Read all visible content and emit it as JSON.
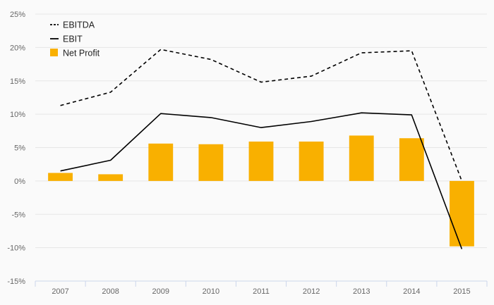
{
  "chart_data": {
    "type": "bar",
    "categories": [
      "2007",
      "2008",
      "2009",
      "2010",
      "2011",
      "2012",
      "2013",
      "2014",
      "2015"
    ],
    "y_ticks": [
      "25%",
      "20%",
      "15%",
      "10%",
      "5%",
      "0%",
      "-5%",
      "-10%",
      "-15%"
    ],
    "ylim": [
      -15,
      25
    ],
    "grid": true,
    "legend_position": "top-left",
    "series": [
      {
        "name": "EBITDA",
        "type": "line",
        "style": "dashed",
        "color": "#000000",
        "values": [
          11.3,
          13.3,
          19.7,
          18.2,
          14.8,
          15.7,
          19.2,
          19.5,
          0.0
        ]
      },
      {
        "name": "EBIT",
        "type": "line",
        "style": "solid",
        "color": "#000000",
        "values": [
          1.5,
          3.1,
          10.1,
          9.5,
          8.0,
          8.9,
          10.2,
          9.9,
          -10.2
        ]
      },
      {
        "name": "Net Profit",
        "type": "bar",
        "color": "#f9b000",
        "values": [
          1.2,
          1.0,
          5.6,
          5.5,
          5.9,
          5.9,
          6.8,
          6.4,
          -9.8
        ]
      }
    ]
  }
}
